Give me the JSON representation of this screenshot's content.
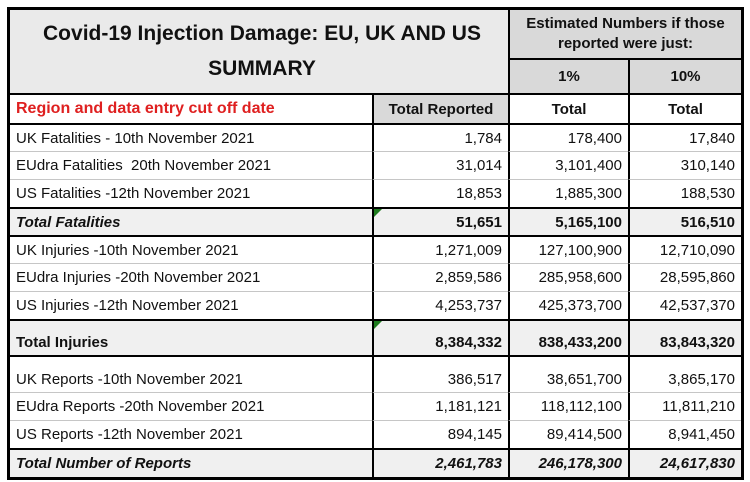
{
  "table": {
    "title_line1": "Covid-19 Injection Damage: EU, UK AND US",
    "title_line2": "SUMMARY",
    "estimated_header": "Estimated Numbers if those reported were just:",
    "col_pct1": "1%",
    "col_pct10": "10%",
    "col_region": "Region and data entry cut off date",
    "col_reported": "Total Reported",
    "col_total1": "Total",
    "col_total2": "Total"
  },
  "fatalities": {
    "rows": [
      {
        "label": "UK Fatalities - 10th November 2021",
        "reported": "1,784",
        "pct1": "178,400",
        "pct10": "17,840"
      },
      {
        "label": "EUdra Fatalities  20th November 2021",
        "reported": "31,014",
        "pct1": "3,101,400",
        "pct10": "310,140"
      },
      {
        "label": "US Fatalities -12th November 2021",
        "reported": "18,853",
        "pct1": "1,885,300",
        "pct10": "188,530"
      }
    ],
    "total": {
      "label": "Total Fatalities",
      "reported": "51,651",
      "pct1": "5,165,100",
      "pct10": "516,510"
    }
  },
  "injuries": {
    "rows": [
      {
        "label": "UK Injuries -10th November 2021",
        "reported": "1,271,009",
        "pct1": "127,100,900",
        "pct10": "12,710,090"
      },
      {
        "label": "EUdra Injuries -20th November 2021",
        "reported": "2,859,586",
        "pct1": "285,958,600",
        "pct10": "28,595,860"
      },
      {
        "label": "US Injuries -12th November 2021",
        "reported": "4,253,737",
        "pct1": "425,373,700",
        "pct10": "42,537,370"
      }
    ],
    "total": {
      "label": "Total Injuries",
      "reported": "8,384,332",
      "pct1": "838,433,200",
      "pct10": "83,843,320"
    }
  },
  "reports": {
    "rows": [
      {
        "label": "UK Reports -10th November 2021",
        "reported": "386,517",
        "pct1": "38,651,700",
        "pct10": "3,865,170"
      },
      {
        "label": "EUdra Reports -20th November 2021",
        "reported": "1,181,121",
        "pct1": "118,112,100",
        "pct10": "11,811,210"
      },
      {
        "label": "US Reports -12th November 2021",
        "reported": "894,145",
        "pct1": "89,414,500",
        "pct10": "8,941,450"
      }
    ],
    "total": {
      "label": "Total Number of Reports",
      "reported": "2,461,783",
      "pct1": "246,178,300",
      "pct10": "24,617,830"
    }
  },
  "colors": {
    "accent_red": "#df2020",
    "header_gray": "#d9d9d9",
    "title_gray": "#eaeaea",
    "total_row_gray": "#f0f0f0",
    "error_triangle_green": "#1e7b1e",
    "border_black": "#000000"
  }
}
